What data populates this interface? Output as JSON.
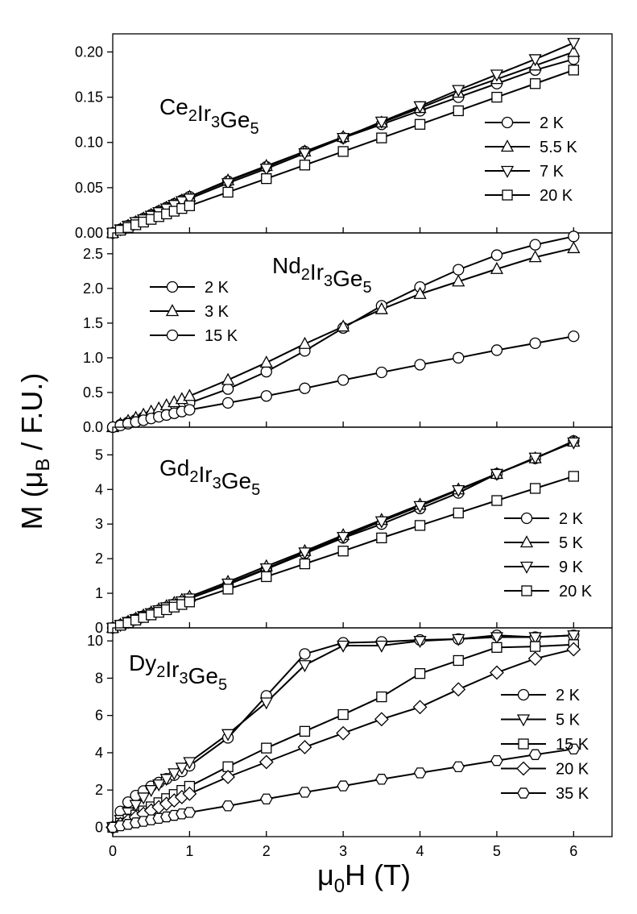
{
  "figure": {
    "xlabel": "μ0H (T)",
    "ylabel": "M (μB / F.U.)",
    "xlim": [
      0,
      6.5
    ],
    "xticks": [
      0,
      1,
      2,
      3,
      4,
      5,
      6
    ]
  },
  "chart_data": [
    {
      "type": "line",
      "title": "Ce2Ir3Ge5",
      "formula": [
        [
          "Ce",
          "2"
        ],
        [
          "Ir",
          "3"
        ],
        [
          "Ge",
          "5"
        ]
      ],
      "ylim": [
        0,
        0.22
      ],
      "yticks": [
        "0.00",
        "0.05",
        "0.10",
        "0.15",
        "0.20"
      ],
      "legend_position": "right",
      "series": [
        {
          "name": "2 K",
          "marker": "circle",
          "x": [
            0,
            0.1,
            0.2,
            0.3,
            0.4,
            0.5,
            0.6,
            0.7,
            0.8,
            0.9,
            1,
            1.5,
            2,
            2.5,
            3,
            3.5,
            4,
            4.5,
            5,
            5.5,
            6
          ],
          "y": [
            0,
            0.004,
            0.008,
            0.012,
            0.016,
            0.02,
            0.024,
            0.028,
            0.032,
            0.036,
            0.04,
            0.057,
            0.073,
            0.09,
            0.105,
            0.12,
            0.135,
            0.15,
            0.165,
            0.18,
            0.192
          ]
        },
        {
          "name": "5.5 K",
          "marker": "triangle-up",
          "x": [
            0,
            0.1,
            0.2,
            0.3,
            0.4,
            0.5,
            0.6,
            0.7,
            0.8,
            0.9,
            1,
            1.5,
            2,
            2.5,
            3,
            3.5,
            4,
            4.5,
            5,
            5.5,
            6
          ],
          "y": [
            0,
            0.004,
            0.008,
            0.012,
            0.016,
            0.02,
            0.024,
            0.028,
            0.032,
            0.036,
            0.04,
            0.058,
            0.074,
            0.09,
            0.106,
            0.122,
            0.138,
            0.155,
            0.17,
            0.185,
            0.2
          ]
        },
        {
          "name": "7 K",
          "marker": "triangle-down",
          "x": [
            0,
            0.1,
            0.2,
            0.3,
            0.4,
            0.5,
            0.6,
            0.7,
            0.8,
            0.9,
            1,
            1.5,
            2,
            2.5,
            3,
            3.5,
            4,
            4.5,
            5,
            5.5,
            6
          ],
          "y": [
            0,
            0.004,
            0.008,
            0.012,
            0.015,
            0.019,
            0.023,
            0.027,
            0.031,
            0.035,
            0.038,
            0.055,
            0.071,
            0.088,
            0.105,
            0.123,
            0.14,
            0.158,
            0.175,
            0.192,
            0.21
          ]
        },
        {
          "name": "20 K",
          "marker": "square",
          "x": [
            0,
            0.1,
            0.2,
            0.3,
            0.4,
            0.5,
            0.6,
            0.7,
            0.8,
            0.9,
            1,
            1.5,
            2,
            2.5,
            3,
            3.5,
            4,
            4.5,
            5,
            5.5,
            6
          ],
          "y": [
            0,
            0.003,
            0.006,
            0.009,
            0.012,
            0.015,
            0.018,
            0.021,
            0.024,
            0.027,
            0.03,
            0.045,
            0.06,
            0.075,
            0.09,
            0.105,
            0.12,
            0.135,
            0.15,
            0.165,
            0.18
          ]
        }
      ]
    },
    {
      "type": "line",
      "title": "Nd2Ir3Ge5",
      "formula": [
        [
          "Nd",
          "2"
        ],
        [
          "Ir",
          "3"
        ],
        [
          "Ge",
          "5"
        ]
      ],
      "ylim": [
        0,
        2.8
      ],
      "yticks": [
        "0.0",
        "0.5",
        "1.0",
        "1.5",
        "2.0",
        "2.5"
      ],
      "legend_position": "upper-left",
      "series": [
        {
          "name": "2 K",
          "marker": "circle",
          "x": [
            0,
            0.1,
            0.2,
            0.3,
            0.4,
            0.5,
            0.6,
            0.7,
            0.8,
            0.9,
            1,
            1.5,
            2,
            2.5,
            3,
            3.5,
            4,
            4.5,
            5,
            5.5,
            6
          ],
          "y": [
            0,
            0.035,
            0.07,
            0.105,
            0.14,
            0.175,
            0.21,
            0.245,
            0.28,
            0.315,
            0.35,
            0.55,
            0.8,
            1.1,
            1.43,
            1.75,
            2.02,
            2.27,
            2.48,
            2.63,
            2.75
          ]
        },
        {
          "name": "3 K",
          "marker": "triangle-up",
          "x": [
            0,
            0.1,
            0.2,
            0.3,
            0.4,
            0.5,
            0.6,
            0.7,
            0.8,
            0.9,
            1,
            1.5,
            2,
            2.5,
            3,
            3.5,
            4,
            4.5,
            5,
            5.5,
            6
          ],
          "y": [
            0,
            0.045,
            0.09,
            0.135,
            0.18,
            0.225,
            0.27,
            0.315,
            0.36,
            0.405,
            0.45,
            0.68,
            0.93,
            1.2,
            1.45,
            1.7,
            1.92,
            2.1,
            2.28,
            2.45,
            2.58
          ]
        },
        {
          "name": "15 K",
          "marker": "circle",
          "x": [
            0,
            0.1,
            0.2,
            0.3,
            0.4,
            0.5,
            0.6,
            0.7,
            0.8,
            0.9,
            1,
            1.5,
            2,
            2.5,
            3,
            3.5,
            4,
            4.5,
            5,
            5.5,
            6
          ],
          "y": [
            0,
            0.025,
            0.05,
            0.075,
            0.1,
            0.125,
            0.15,
            0.175,
            0.2,
            0.225,
            0.25,
            0.35,
            0.45,
            0.56,
            0.68,
            0.79,
            0.9,
            1.0,
            1.11,
            1.21,
            1.31
          ]
        }
      ]
    },
    {
      "type": "line",
      "title": "Gd2Ir3Ge5",
      "formula": [
        [
          "Gd",
          "2"
        ],
        [
          "Ir",
          "3"
        ],
        [
          "Ge",
          "5"
        ]
      ],
      "ylim": [
        0,
        5.8
      ],
      "yticks": [
        "0",
        "1",
        "2",
        "3",
        "4",
        "5"
      ],
      "legend_position": "lower-right",
      "series": [
        {
          "name": "2 K",
          "marker": "circle",
          "x": [
            0,
            0.1,
            0.2,
            0.3,
            0.4,
            0.5,
            0.6,
            0.7,
            0.8,
            0.9,
            1,
            1.5,
            2,
            2.5,
            3,
            3.5,
            4,
            4.5,
            5,
            5.5,
            6
          ],
          "y": [
            0,
            0.085,
            0.17,
            0.255,
            0.34,
            0.425,
            0.51,
            0.595,
            0.68,
            0.765,
            0.85,
            1.25,
            1.7,
            2.15,
            2.6,
            3.0,
            3.45,
            3.9,
            4.45,
            4.9,
            5.4
          ]
        },
        {
          "name": "5 K",
          "marker": "triangle-up",
          "x": [
            0,
            0.1,
            0.2,
            0.3,
            0.4,
            0.5,
            0.6,
            0.7,
            0.8,
            0.9,
            1,
            1.5,
            2,
            2.5,
            3,
            3.5,
            4,
            4.5,
            5,
            5.5,
            6
          ],
          "y": [
            0,
            0.09,
            0.18,
            0.27,
            0.36,
            0.45,
            0.54,
            0.63,
            0.72,
            0.81,
            0.9,
            1.33,
            1.78,
            2.22,
            2.68,
            3.12,
            3.56,
            4.0,
            4.45,
            4.9,
            5.38
          ]
        },
        {
          "name": "9 K",
          "marker": "triangle-down",
          "x": [
            0,
            0.1,
            0.2,
            0.3,
            0.4,
            0.5,
            0.6,
            0.7,
            0.8,
            0.9,
            1,
            1.5,
            2,
            2.5,
            3,
            3.5,
            4,
            4.5,
            5,
            5.5,
            6
          ],
          "y": [
            0,
            0.085,
            0.17,
            0.255,
            0.34,
            0.425,
            0.51,
            0.595,
            0.68,
            0.765,
            0.85,
            1.28,
            1.72,
            2.18,
            2.63,
            3.08,
            3.52,
            3.98,
            4.45,
            4.92,
            5.36
          ]
        },
        {
          "name": "20 K",
          "marker": "square",
          "x": [
            0,
            0.1,
            0.2,
            0.3,
            0.4,
            0.5,
            0.6,
            0.7,
            0.8,
            0.9,
            1,
            1.5,
            2,
            2.5,
            3,
            3.5,
            4,
            4.5,
            5,
            5.5,
            6
          ],
          "y": [
            0,
            0.075,
            0.15,
            0.225,
            0.3,
            0.375,
            0.45,
            0.525,
            0.6,
            0.675,
            0.75,
            1.12,
            1.48,
            1.85,
            2.22,
            2.6,
            2.96,
            3.32,
            3.68,
            4.03,
            4.38
          ]
        }
      ]
    },
    {
      "type": "line",
      "title": "Dy2Ir3Ge5",
      "formula": [
        [
          "Dy",
          "2"
        ],
        [
          "Ir",
          "3"
        ],
        [
          "Ge",
          "5"
        ]
      ],
      "ylim": [
        -0.5,
        10.7
      ],
      "yticks": [
        "0",
        "2",
        "4",
        "6",
        "8",
        "10"
      ],
      "legend_position": "right",
      "series": [
        {
          "name": "2 K",
          "marker": "circle",
          "x": [
            0,
            0.1,
            0.2,
            0.3,
            0.4,
            0.5,
            0.6,
            0.7,
            0.8,
            0.9,
            1,
            1.5,
            2,
            2.5,
            3,
            3.5,
            4,
            4.5,
            5,
            5.5,
            6
          ],
          "y": [
            0,
            0.85,
            1.35,
            1.7,
            1.95,
            2.2,
            2.4,
            2.6,
            2.8,
            3.0,
            3.3,
            4.8,
            7.05,
            9.3,
            9.9,
            9.95,
            10.05,
            10.1,
            10.3,
            10.2,
            10.3
          ]
        },
        {
          "name": "5 K",
          "marker": "triangle-down",
          "x": [
            0,
            0.1,
            0.2,
            0.3,
            0.4,
            0.5,
            0.6,
            0.7,
            0.8,
            0.9,
            1,
            1.5,
            2,
            2.5,
            3,
            3.5,
            4,
            4.5,
            5,
            5.5,
            6
          ],
          "y": [
            0,
            0.4,
            0.8,
            1.2,
            1.6,
            2.0,
            2.3,
            2.6,
            2.9,
            3.2,
            3.5,
            5.0,
            6.7,
            8.7,
            9.75,
            9.75,
            10.0,
            10.1,
            10.2,
            10.2,
            10.3
          ]
        },
        {
          "name": "15 K",
          "marker": "square",
          "x": [
            0,
            0.1,
            0.2,
            0.3,
            0.4,
            0.5,
            0.6,
            0.7,
            0.8,
            0.9,
            1,
            1.5,
            2,
            2.5,
            3,
            3.5,
            4,
            4.5,
            5,
            5.5,
            6
          ],
          "y": [
            0,
            0.22,
            0.44,
            0.66,
            0.88,
            1.1,
            1.32,
            1.54,
            1.76,
            1.98,
            2.2,
            3.25,
            4.25,
            5.15,
            6.05,
            7.0,
            8.25,
            8.95,
            9.65,
            9.7,
            9.8
          ]
        },
        {
          "name": "20 K",
          "marker": "diamond",
          "x": [
            0,
            0.1,
            0.2,
            0.3,
            0.4,
            0.5,
            0.6,
            0.7,
            0.8,
            0.9,
            1,
            1.5,
            2,
            2.5,
            3,
            3.5,
            4,
            4.5,
            5,
            5.5,
            6
          ],
          "y": [
            0,
            0.18,
            0.36,
            0.54,
            0.72,
            0.9,
            1.08,
            1.26,
            1.44,
            1.62,
            1.8,
            2.7,
            3.5,
            4.3,
            5.05,
            5.8,
            6.45,
            7.4,
            8.3,
            9.05,
            9.55
          ]
        },
        {
          "name": "35 K",
          "marker": "hexagon",
          "x": [
            0,
            0.1,
            0.2,
            0.3,
            0.4,
            0.5,
            0.6,
            0.7,
            0.8,
            0.9,
            1,
            1.5,
            2,
            2.5,
            3,
            3.5,
            4,
            4.5,
            5,
            5.5,
            6
          ],
          "y": [
            0,
            0.08,
            0.16,
            0.24,
            0.32,
            0.4,
            0.48,
            0.56,
            0.64,
            0.72,
            0.8,
            1.15,
            1.52,
            1.88,
            2.22,
            2.58,
            2.92,
            3.25,
            3.58,
            3.9,
            4.2
          ]
        }
      ]
    }
  ]
}
